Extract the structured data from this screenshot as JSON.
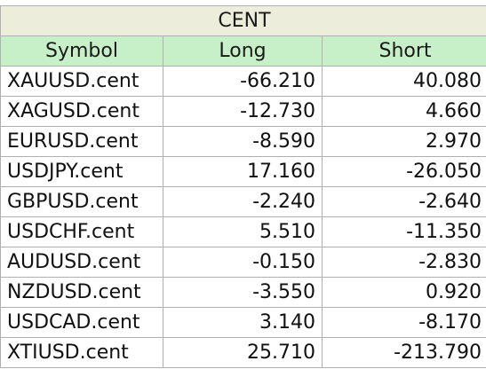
{
  "sheet": {
    "title": "CENT",
    "headers": {
      "symbol": "Symbol",
      "long": "Long",
      "short": "Short"
    },
    "rows": [
      {
        "symbol": "XAUUSD.cent",
        "long": "-66.210",
        "short": "40.080"
      },
      {
        "symbol": "XAGUSD.cent",
        "long": "-12.730",
        "short": "4.660"
      },
      {
        "symbol": "EURUSD.cent",
        "long": "-8.590",
        "short": "2.970"
      },
      {
        "symbol": "USDJPY.cent",
        "long": "17.160",
        "short": "-26.050"
      },
      {
        "symbol": "GBPUSD.cent",
        "long": "-2.240",
        "short": "-2.640"
      },
      {
        "symbol": "USDCHF.cent",
        "long": "5.510",
        "short": "-11.350"
      },
      {
        "symbol": "AUDUSD.cent",
        "long": "-0.150",
        "short": "-2.830"
      },
      {
        "symbol": "NZDUSD.cent",
        "long": "-3.550",
        "short": "0.920"
      },
      {
        "symbol": "USDCAD.cent",
        "long": "3.140",
        "short": "-8.170"
      },
      {
        "symbol": "XTIUSD.cent",
        "long": "25.710",
        "short": "-213.790"
      }
    ]
  },
  "colors": {
    "title_bg": "#ededdb",
    "header_bg": "#c8f0c8",
    "negative_text": "#e8211f",
    "grid": "#b0b0b0"
  }
}
